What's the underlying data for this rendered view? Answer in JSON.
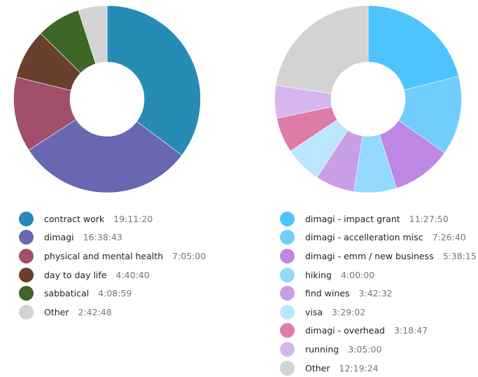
{
  "chart_data": [
    {
      "type": "pie",
      "variant": "donut",
      "title": "",
      "categories": [
        "contract work",
        "dimagi",
        "physical and mental health",
        "day to day life",
        "sabbatical",
        "Other"
      ],
      "values_display": [
        "19:11:20",
        "16:38:43",
        "7:05:00",
        "4:40:40",
        "4:08:59",
        "2:42:48"
      ],
      "values_seconds": [
        69080,
        59923,
        25500,
        16840,
        14939,
        9768
      ],
      "colors": [
        "#268bb5",
        "#6767b2",
        "#a24f6c",
        "#68402c",
        "#3e6626",
        "#d3d3d3"
      ],
      "legend_position": "bottom",
      "start_angle_deg": 0,
      "direction": "clockwise"
    },
    {
      "type": "pie",
      "variant": "donut",
      "title": "",
      "categories": [
        "dimagi - impact grant",
        "dimagi - accelleration misc",
        "dimagi - emm / new business",
        "hiking",
        "find wines",
        "visa",
        "dimagi - overhead",
        "running",
        "Other"
      ],
      "values_display": [
        "11:27:50",
        "7:26:40",
        "5:38:15",
        "4:00:00",
        "3:42:32",
        "3:29:02",
        "3:18:47",
        "3:05:00",
        "12:19:24"
      ],
      "values_seconds": [
        41270,
        26800,
        20295,
        14400,
        13352,
        12542,
        11927,
        11100,
        44364
      ],
      "colors": [
        "#4dc3ff",
        "#72cdff",
        "#be87e6",
        "#94daff",
        "#c99ee9",
        "#bbe6ff",
        "#dd7ca8",
        "#d7b6ef",
        "#d3d3d3"
      ],
      "legend_position": "bottom",
      "start_angle_deg": 0,
      "direction": "clockwise"
    }
  ],
  "left_chart": {
    "legend": [
      {
        "label": "contract work",
        "value": "19:11:20",
        "color": "#268bb5"
      },
      {
        "label": "dimagi",
        "value": "16:38:43",
        "color": "#6767b2"
      },
      {
        "label": "physical and mental health",
        "value": "7:05:00",
        "color": "#a24f6c"
      },
      {
        "label": "day to day life",
        "value": "4:40:40",
        "color": "#68402c"
      },
      {
        "label": "sabbatical",
        "value": "4:08:59",
        "color": "#3e6626"
      },
      {
        "label": "Other",
        "value": "2:42:48",
        "color": "#d3d3d3"
      }
    ]
  },
  "right_chart": {
    "legend": [
      {
        "label": "dimagi - impact grant",
        "value": "11:27:50",
        "color": "#4dc3ff"
      },
      {
        "label": "dimagi - accelleration misc",
        "value": "7:26:40",
        "color": "#72cdff"
      },
      {
        "label": "dimagi - emm / new business",
        "value": "5:38:15",
        "color": "#be87e6"
      },
      {
        "label": "hiking",
        "value": "4:00:00",
        "color": "#94daff"
      },
      {
        "label": "find wines",
        "value": "3:42:32",
        "color": "#c99ee9"
      },
      {
        "label": "visa",
        "value": "3:29:02",
        "color": "#bbe6ff"
      },
      {
        "label": "dimagi - overhead",
        "value": "3:18:47",
        "color": "#dd7ca8"
      },
      {
        "label": "running",
        "value": "3:05:00",
        "color": "#d7b6ef"
      },
      {
        "label": "Other",
        "value": "12:19:24",
        "color": "#d3d3d3"
      }
    ]
  }
}
